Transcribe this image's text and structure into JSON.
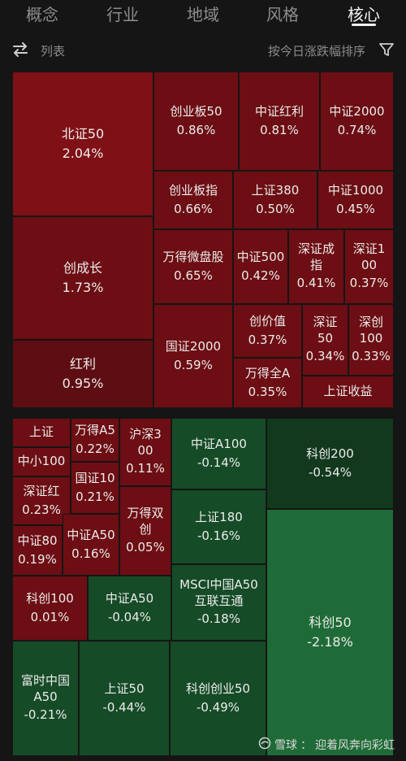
{
  "tabs": [
    {
      "label": "概念",
      "active": false
    },
    {
      "label": "行业",
      "active": false
    },
    {
      "label": "地域",
      "active": false
    },
    {
      "label": "风格",
      "active": false
    },
    {
      "label": "核心",
      "active": true
    }
  ],
  "toolbar": {
    "list_label": "列表",
    "sort_label": "按今日涨跌幅排序",
    "swap_icon": "swap-icon",
    "filter_icon": "filter-icon"
  },
  "colors": {
    "background": "#151515",
    "up_strong": "#7f1016",
    "up": "#6c0e13",
    "down": "#164b27",
    "down_strong": "#1f6b37"
  },
  "heatmap": {
    "up_tiles": [
      {
        "name": "北证50",
        "change": "2.04%"
      },
      {
        "name": "创成长",
        "change": "1.73%"
      },
      {
        "name": "红利",
        "change": "0.95%"
      },
      {
        "name": "创业板50",
        "change": "0.86%"
      },
      {
        "name": "中证红利",
        "change": "0.81%"
      },
      {
        "name": "中证2000",
        "change": "0.74%"
      },
      {
        "name": "创业板指",
        "change": "0.66%"
      },
      {
        "name": "上证380",
        "change": "0.50%"
      },
      {
        "name": "中证1000",
        "change": "0.45%"
      },
      {
        "name": "中证500",
        "change": "0.42%"
      },
      {
        "name": "深证成指",
        "change": "0.41%"
      },
      {
        "name": "深证100",
        "change": "0.37%"
      },
      {
        "name": "万得微盘股",
        "change": "0.65%"
      },
      {
        "name": "创价值",
        "change": "0.37%"
      },
      {
        "name": "深证50",
        "change": "0.34%"
      },
      {
        "name": "深创100",
        "change": "0.33%"
      },
      {
        "name": "国证2000",
        "change": "0.59%"
      },
      {
        "name": "万得全A",
        "change": "0.35%"
      },
      {
        "name": "上证收益",
        "change": ""
      }
    ],
    "mixed_tiles": [
      {
        "name": "上证",
        "change": ""
      },
      {
        "name": "万得A5",
        "change": "0.22%"
      },
      {
        "name": "沪深300",
        "change": "0.11%"
      },
      {
        "name": "中小100",
        "change": ""
      },
      {
        "name": "国证10",
        "change": "0.21%"
      },
      {
        "name": "深证红",
        "change": "0.23%"
      },
      {
        "name": "万得双创",
        "change": "0.05%"
      },
      {
        "name": "中证80",
        "change": "0.19%"
      },
      {
        "name": "中证A50",
        "change": "0.16%"
      },
      {
        "name": "科创100",
        "change": "0.01%"
      },
      {
        "name": "中证A100",
        "change": "-0.14%"
      },
      {
        "name": "上证180",
        "change": "-0.16%"
      },
      {
        "name": "MSCI中国A50互联互通",
        "change": "-0.18%"
      },
      {
        "name": "中证A50",
        "change": "-0.04%"
      },
      {
        "name": "科创200",
        "change": "-0.54%"
      },
      {
        "name": "科创50",
        "change": "-2.18%"
      },
      {
        "name": "富时中国A50",
        "change": "-0.21%"
      },
      {
        "name": "上证50",
        "change": "-0.44%"
      },
      {
        "name": "科创创业50",
        "change": "-0.49%"
      }
    ]
  },
  "watermark": {
    "brand": "雪球",
    "separator": "：",
    "author": "迎着风奔向彩虹"
  }
}
